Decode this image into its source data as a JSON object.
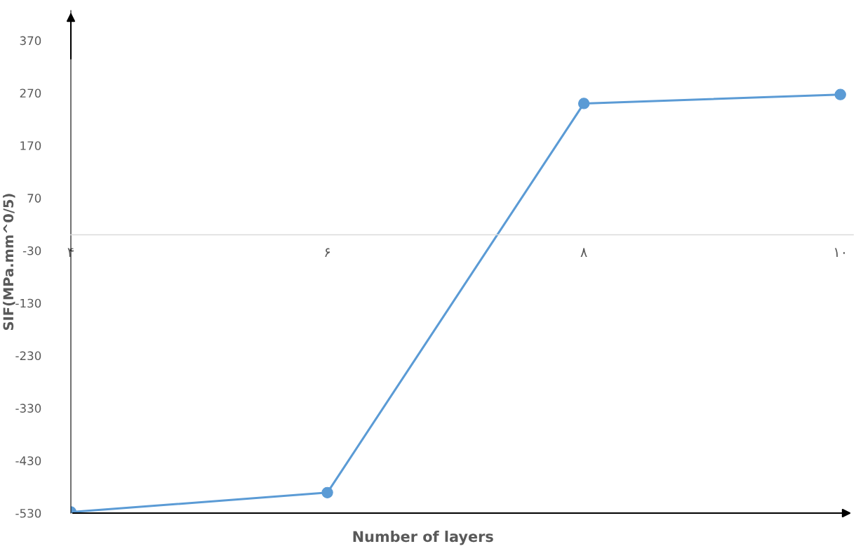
{
  "chart_data": {
    "type": "line",
    "xlabel": "Number of layers",
    "ylabel": "SIF(MPa.mm^0/5)",
    "categories": [
      "۴",
      "۶",
      "۸",
      "۱۰"
    ],
    "series": [
      {
        "color": "#5b9bd5",
        "values": [
          -528,
          -491,
          250,
          267
        ]
      }
    ],
    "ylim": [
      -530,
      427
    ],
    "yticks": [
      -530,
      -430,
      -330,
      -230,
      -130,
      -30,
      70,
      170,
      270,
      370
    ],
    "marker": "circle",
    "grid": false,
    "legend": false
  }
}
